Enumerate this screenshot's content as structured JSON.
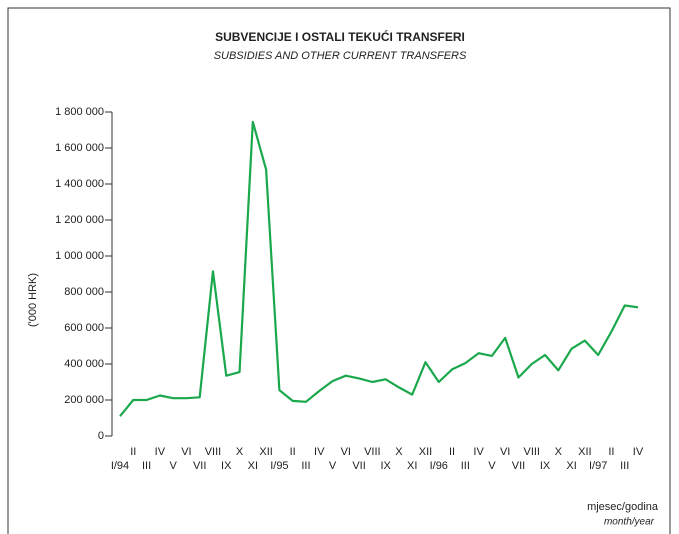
{
  "chart_data": {
    "type": "line",
    "title": "SUBVENCIJE I OSTALI TEKUĆI TRANSFERI",
    "subtitle": "SUBSIDIES AND OTHER CURRENT TRANSFERS",
    "y_label": "('000 HRK)",
    "x_label": "mjesec/godina",
    "x_label_en": "month/year",
    "categories": [
      "I/94",
      "II",
      "III",
      "IV",
      "V",
      "VI",
      "VII",
      "VIII",
      "IX",
      "X",
      "XI",
      "XII",
      "I/95",
      "II",
      "III",
      "IV",
      "V",
      "VI",
      "VII",
      "VIII",
      "IX",
      "X",
      "XI",
      "XII",
      "I/96",
      "II",
      "III",
      "IV",
      "V",
      "VI",
      "VII",
      "VIII",
      "IX",
      "X",
      "XI",
      "XII",
      "I/97",
      "II",
      "III",
      "IV"
    ],
    "series": [
      {
        "name": "Subvencije",
        "color": "#1ba84c",
        "values": [
          110000,
          200000,
          200000,
          225000,
          210000,
          210000,
          215000,
          915000,
          335000,
          355000,
          1745000,
          1480000,
          255000,
          195000,
          190000,
          250000,
          305000,
          335000,
          320000,
          300000,
          315000,
          270000,
          230000,
          410000,
          300000,
          370000,
          405000,
          460000,
          445000,
          545000,
          325000,
          400000,
          450000,
          365000,
          485000,
          530000,
          450000,
          580000,
          725000,
          715000
        ]
      }
    ],
    "ylim": [
      0,
      1800000
    ],
    "yticks": [
      0,
      {
        "value": 200000,
        "label": "200 000"
      },
      {
        "value": 400000,
        "label": "400 000"
      },
      {
        "value": 600000,
        "label": "600 000"
      },
      {
        "value": 800000,
        "label": "800 000"
      },
      {
        "value": 1000000,
        "label": "1 000 000"
      },
      {
        "value": 1200000,
        "label": "1 200 000"
      },
      {
        "value": 1400000,
        "label": "1 400 000"
      },
      {
        "value": 1600000,
        "label": "1 600 000"
      },
      {
        "value": 1800000,
        "label": "1 800 000"
      }
    ]
  }
}
